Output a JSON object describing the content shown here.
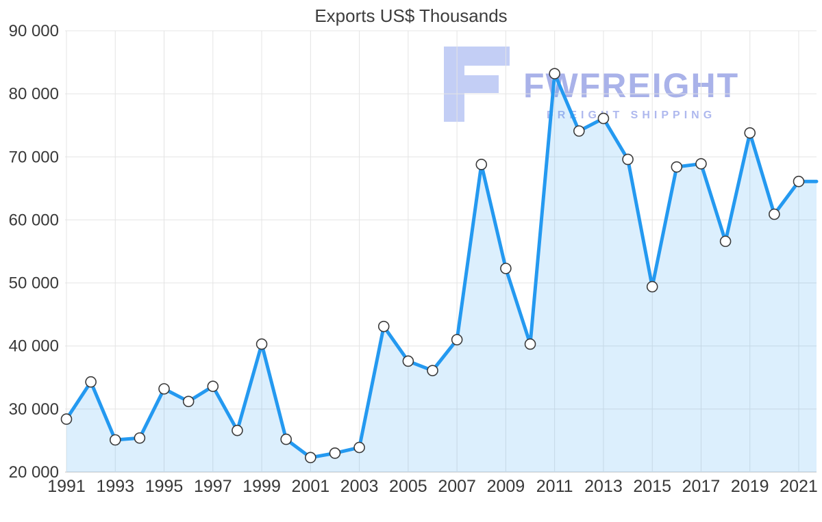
{
  "title": "Exports US$ Thousands",
  "title_color": "#3d3d3d",
  "watermark": {
    "brand": "FWFREIGHT",
    "tagline": "FREIGHT SHIPPING",
    "mark_color": "#c3cef5",
    "brand_color": "#a9b2e9",
    "tagline_color": "#aeb8ee"
  },
  "chart_data": {
    "type": "area",
    "title": "Exports US$ Thousands",
    "xlabel": "",
    "ylabel": "",
    "x": [
      1991,
      1992,
      1993,
      1994,
      1995,
      1996,
      1997,
      1998,
      1999,
      2000,
      2001,
      2002,
      2003,
      2004,
      2005,
      2006,
      2007,
      2008,
      2009,
      2010,
      2011,
      2012,
      2013,
      2014,
      2015,
      2016,
      2017,
      2018,
      2019,
      2020,
      2021
    ],
    "values": [
      28400,
      34300,
      25100,
      25400,
      33200,
      31200,
      33600,
      26600,
      40300,
      25200,
      22300,
      23000,
      23900,
      43100,
      37600,
      36100,
      41000,
      68800,
      52300,
      40300,
      83200,
      74100,
      76100,
      69600,
      49400,
      68400,
      68900,
      56600,
      73800,
      60900,
      66100
    ],
    "xticks": [
      1991,
      1993,
      1995,
      1997,
      1999,
      2001,
      2003,
      2005,
      2007,
      2009,
      2011,
      2013,
      2015,
      2017,
      2019,
      2021
    ],
    "yticks": [
      20000,
      30000,
      40000,
      50000,
      60000,
      70000,
      80000,
      90000
    ],
    "ytick_labels": [
      "20 000",
      "30 000",
      "40 000",
      "50 000",
      "60 000",
      "70 000",
      "80 000",
      "90 000"
    ],
    "ylim": [
      20000,
      90000
    ],
    "grid": true,
    "legend": "none",
    "colors": {
      "line": "#2499f0",
      "area": "rgba(36, 153, 240, 0.16)",
      "grid": "#e4e4e4",
      "axis": "#c0c0c0",
      "marker_fill": "#ffffff",
      "marker_stroke": "#3a3a3a",
      "tick_text": "#383838"
    }
  }
}
